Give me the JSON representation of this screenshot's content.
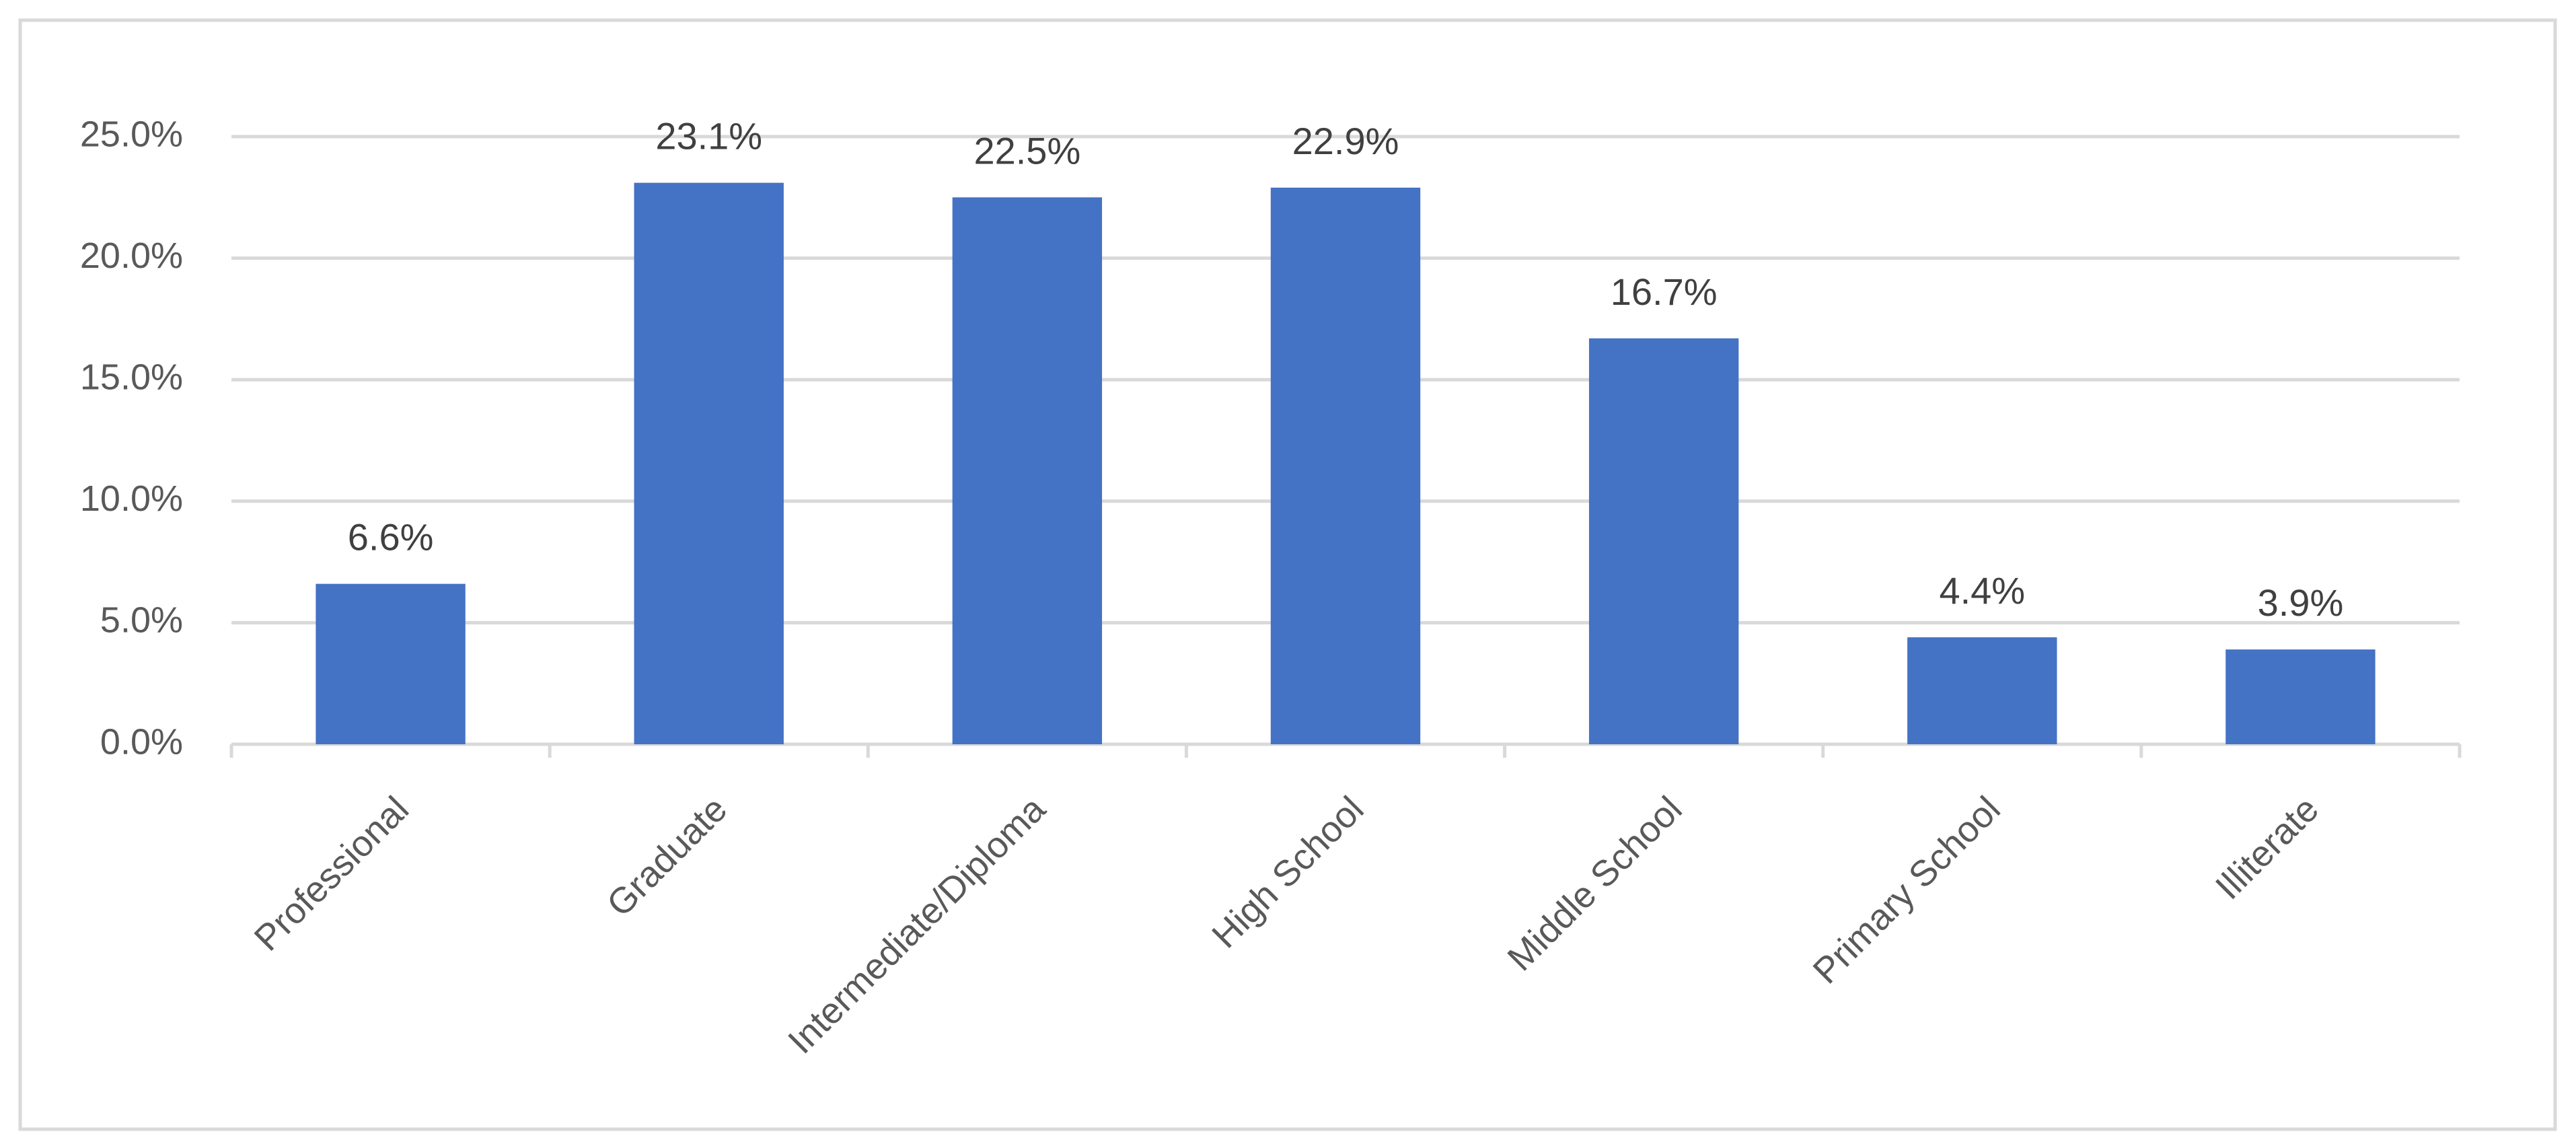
{
  "chart_data": {
    "type": "bar",
    "categories": [
      "Professional",
      "Graduate",
      "Intermediate/Diploma",
      "High School",
      "Middle School",
      "Primary School",
      "Illiterate"
    ],
    "values": [
      6.6,
      23.1,
      22.5,
      22.9,
      16.7,
      4.4,
      3.9
    ],
    "value_labels": [
      "6.6%",
      "23.1%",
      "22.5%",
      "22.9%",
      "16.7%",
      "4.4%",
      "3.9%"
    ],
    "color": "#4472c4",
    "ylim": [
      0,
      25
    ],
    "yticks": [
      {
        "value": 0,
        "label": "0.0%"
      },
      {
        "value": 5,
        "label": "5.0%"
      },
      {
        "value": 10,
        "label": "10.0%"
      },
      {
        "value": 15,
        "label": "15.0%"
      },
      {
        "value": 20,
        "label": "20.0%"
      },
      {
        "value": 25,
        "label": "25.0%"
      }
    ],
    "grid": true
  }
}
